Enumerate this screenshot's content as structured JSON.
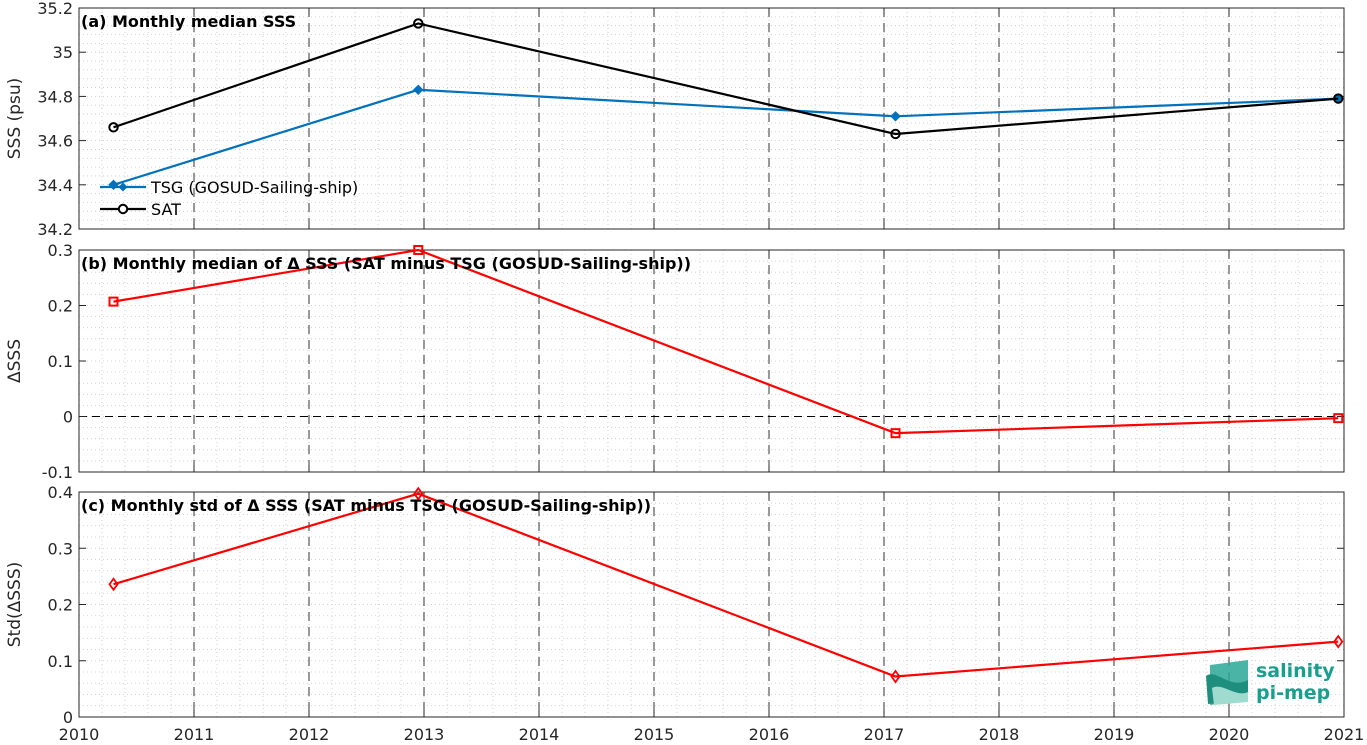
{
  "chart_data": [
    {
      "type": "line",
      "title": "(a) Monthly median SSS",
      "ylabel": "SSS (psu)",
      "xlim": [
        2010,
        2021
      ],
      "ylim": [
        34.2,
        35.2
      ],
      "yticks": [
        "34.2",
        "34.4",
        "34.6",
        "34.8",
        "35",
        "35.2"
      ],
      "x": [
        2010.3,
        2012.95,
        2017.1,
        2020.95
      ],
      "series": [
        {
          "name": "TSG (GOSUD-Sailing-ship)",
          "color": "#0072BD",
          "values": [
            34.4,
            34.83,
            34.71,
            34.79
          ]
        },
        {
          "name": "SAT",
          "color": "#000000",
          "values": [
            34.66,
            35.13,
            34.63,
            34.79
          ]
        }
      ],
      "grid": true,
      "legend": "bottom-left"
    },
    {
      "type": "line",
      "title": "(b) Monthly median of Δ SSS (SAT minus TSG (GOSUD-Sailing-ship))",
      "ylabel": "ΔSSS",
      "xlim": [
        2010,
        2021
      ],
      "ylim": [
        -0.1,
        0.3
      ],
      "yticks": [
        "-0.1",
        "0",
        "0.1",
        "0.2",
        "0.3"
      ],
      "x": [
        2010.3,
        2012.95,
        2017.1,
        2020.95
      ],
      "series": [
        {
          "color": "#FF0000",
          "values": [
            0.207,
            0.3,
            -0.03,
            -0.003
          ]
        }
      ],
      "grid": true
    },
    {
      "type": "line",
      "title": "(c) Monthly std of Δ SSS (SAT minus TSG (GOSUD-Sailing-ship))",
      "ylabel": "Std(ΔSSS)",
      "xlim": [
        2010,
        2021
      ],
      "ylim": [
        0,
        0.4
      ],
      "yticks": [
        "0",
        "0.1",
        "0.2",
        "0.3",
        "0.4"
      ],
      "x": [
        2010.3,
        2012.95,
        2017.1,
        2020.95
      ],
      "series": [
        {
          "color": "#FF0000",
          "values": [
            0.236,
            0.397,
            0.072,
            0.134
          ]
        }
      ],
      "grid": true
    }
  ],
  "xticks": [
    "2010",
    "2011",
    "2012",
    "2013",
    "2014",
    "2015",
    "2016",
    "2017",
    "2018",
    "2019",
    "2020",
    "2021"
  ],
  "logo": {
    "line1": "salinity",
    "line2": "pi-mep"
  }
}
